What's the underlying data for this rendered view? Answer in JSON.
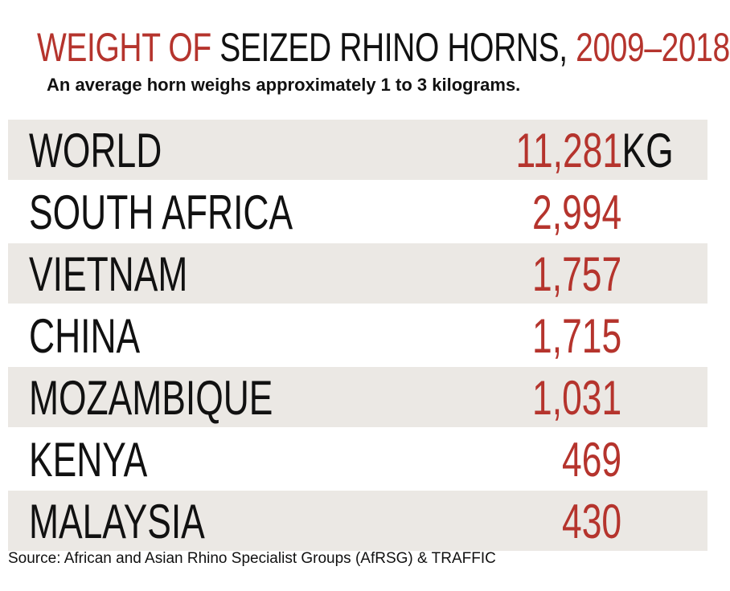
{
  "title": {
    "part1": "WEIGHT OF",
    "part2": "SEIZED RHINO HORNS,",
    "part3": "2009–2018"
  },
  "subtitle": "An average horn weighs approximately 1 to 3 kilograms.",
  "source": "Source: African and Asian Rhino Specialist Groups (AfRSG) & TRAFFIC",
  "colors": {
    "accent": "#b5342d",
    "text": "#111111",
    "row_shade": "#ebe8e4"
  },
  "chart_data": {
    "type": "table",
    "unit_label": "KG",
    "rows": [
      {
        "label": "WORLD",
        "value_text": "11,281",
        "value": 11281
      },
      {
        "label": "SOUTH AFRICA",
        "value_text": "2,994",
        "value": 2994
      },
      {
        "label": "VIETNAM",
        "value_text": "1,757",
        "value": 1757
      },
      {
        "label": "CHINA",
        "value_text": "1,715",
        "value": 1715
      },
      {
        "label": "MOZAMBIQUE",
        "value_text": "1,031",
        "value": 1031
      },
      {
        "label": "KENYA",
        "value_text": "469",
        "value": 469
      },
      {
        "label": "MALAYSIA",
        "value_text": "430",
        "value": 430
      }
    ]
  }
}
